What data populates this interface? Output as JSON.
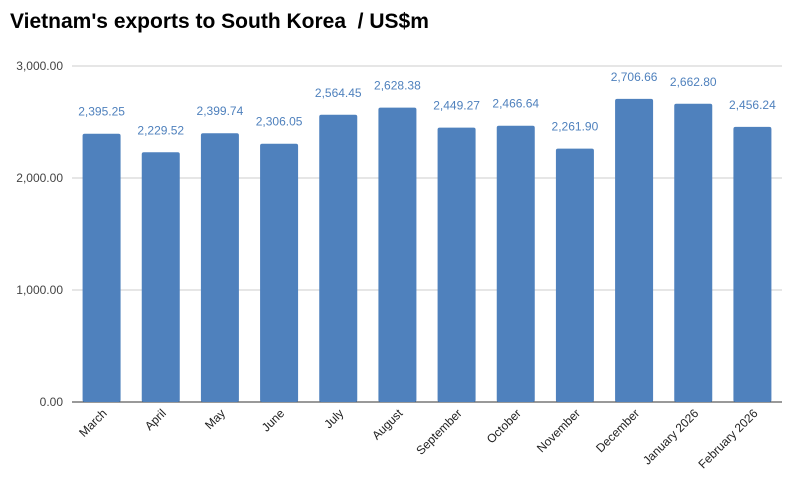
{
  "chart_data": {
    "type": "bar",
    "title": "Vietnam's exports to South Korea  / US$m",
    "xlabel": "",
    "ylabel": "",
    "categories": [
      "March",
      "April",
      "May",
      "June",
      "July",
      "August",
      "September",
      "October",
      "November",
      "December",
      "January 2026",
      "February 2026"
    ],
    "values": [
      2395.25,
      2229.52,
      2399.74,
      2306.05,
      2564.45,
      2628.38,
      2449.27,
      2466.64,
      2261.9,
      2706.66,
      2662.8,
      2456.24
    ],
    "data_labels": [
      "2,395.25",
      "2,229.52",
      "2,399.74",
      "2,306.05",
      "2,564.45",
      "2,628.38",
      "2,449.27",
      "2,466.64",
      "2,261.90",
      "2,706.66",
      "2,662.80",
      "2,456.24"
    ],
    "ylim": [
      0,
      3000
    ],
    "yticks": [
      0,
      1000,
      2000,
      3000
    ],
    "ytick_labels": [
      "0.00",
      "1,000.00",
      "2,000.00",
      "3,000.00"
    ],
    "grid": true,
    "legend": "none",
    "bar_color": "#4f81bd",
    "label_color": "#4f81bd"
  }
}
